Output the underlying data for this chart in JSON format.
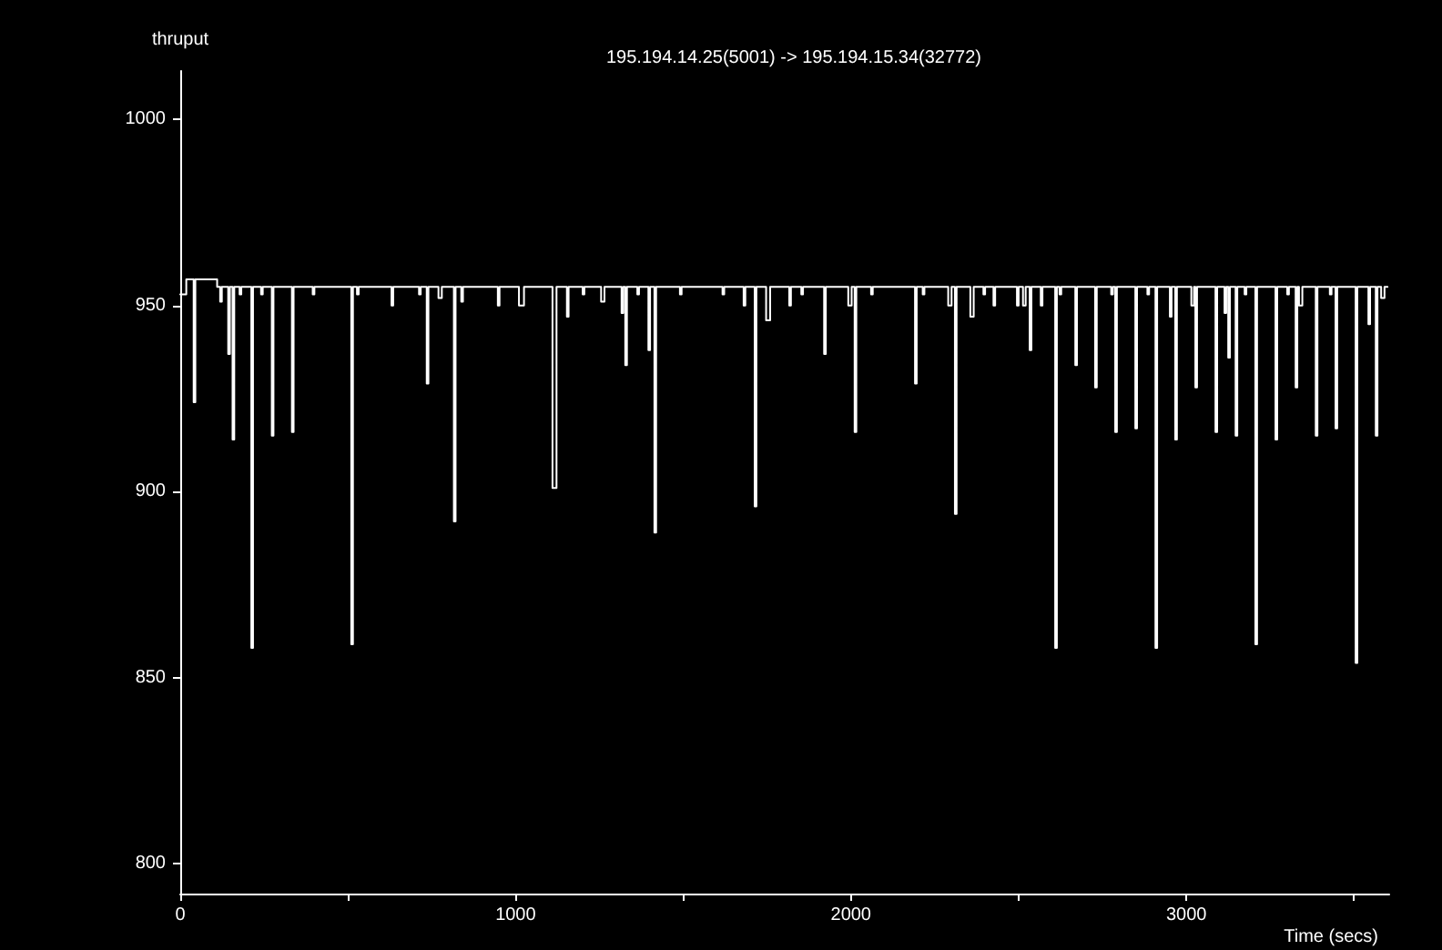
{
  "chart_data": {
    "type": "step",
    "title": "195.194.14.25(5001) -> 195.194.15.34(32772)",
    "xlabel": "Time (secs)",
    "ylabel": "thruput",
    "x": [
      0,
      18,
      40,
      45,
      110,
      119,
      124,
      143,
      148,
      156,
      161,
      177,
      182,
      212,
      217,
      241,
      246,
      273,
      278,
      333,
      338,
      395,
      400,
      510,
      515,
      527,
      532,
      630,
      635,
      712,
      717,
      735,
      740,
      770,
      780,
      816,
      821,
      838,
      843,
      947,
      952,
      1010,
      1025,
      1110,
      1122,
      1153,
      1158,
      1200,
      1205,
      1255,
      1265,
      1316,
      1321,
      1327,
      1332,
      1363,
      1368,
      1396,
      1401,
      1414,
      1419,
      1490,
      1495,
      1617,
      1622,
      1680,
      1685,
      1713,
      1718,
      1747,
      1759,
      1816,
      1821,
      1852,
      1857,
      1920,
      1925,
      1992,
      2002,
      2011,
      2016,
      2060,
      2065,
      2191,
      2196,
      2214,
      2219,
      2290,
      2300,
      2310,
      2315,
      2356,
      2366,
      2395,
      2400,
      2425,
      2430,
      2495,
      2500,
      2513,
      2521,
      2533,
      2538,
      2566,
      2571,
      2609,
      2614,
      2622,
      2627,
      2669,
      2674,
      2728,
      2733,
      2776,
      2781,
      2788,
      2793,
      2848,
      2853,
      2884,
      2889,
      2908,
      2913,
      2951,
      2956,
      2967,
      2972,
      3015,
      3023,
      3027,
      3032,
      3087,
      3092,
      3114,
      3119,
      3125,
      3130,
      3147,
      3152,
      3174,
      3179,
      3206,
      3211,
      3266,
      3271,
      3301,
      3306,
      3326,
      3331,
      3336,
      3346,
      3386,
      3391,
      3428,
      3433,
      3445,
      3450,
      3505,
      3510,
      3543,
      3548,
      3565,
      3570,
      3581,
      3591,
      3600
    ],
    "values": [
      953,
      957,
      924,
      957,
      955,
      951,
      955,
      937,
      955,
      914,
      955,
      953,
      955,
      858,
      955,
      953,
      955,
      915,
      955,
      916,
      955,
      953,
      955,
      859,
      955,
      953,
      955,
      950,
      955,
      953,
      955,
      929,
      955,
      952,
      955,
      892,
      955,
      951,
      955,
      950,
      955,
      950,
      955,
      901,
      955,
      947,
      955,
      953,
      955,
      951,
      955,
      948,
      955,
      934,
      955,
      953,
      955,
      938,
      955,
      889,
      955,
      953,
      955,
      953,
      955,
      950,
      955,
      896,
      955,
      946,
      955,
      950,
      955,
      953,
      955,
      937,
      955,
      950,
      955,
      916,
      955,
      953,
      955,
      929,
      955,
      953,
      955,
      950,
      955,
      894,
      955,
      947,
      955,
      953,
      955,
      950,
      955,
      950,
      955,
      950,
      955,
      938,
      955,
      950,
      955,
      858,
      955,
      953,
      955,
      934,
      955,
      928,
      955,
      953,
      955,
      916,
      955,
      917,
      955,
      953,
      955,
      858,
      955,
      947,
      955,
      914,
      955,
      950,
      955,
      928,
      955,
      916,
      955,
      948,
      955,
      936,
      955,
      915,
      955,
      953,
      955,
      859,
      955,
      914,
      955,
      953,
      955,
      928,
      955,
      950,
      955,
      915,
      955,
      953,
      955,
      917,
      955,
      854,
      955,
      945,
      955,
      915,
      955,
      952,
      955,
      955
    ],
    "color": "#ffffff",
    "xlim": [
      0,
      3605
    ],
    "ylim": [
      792,
      1013
    ],
    "xticks": [
      0,
      {
        "value": 500,
        "label": null
      },
      1000,
      {
        "value": 1500,
        "label": null
      },
      2000,
      {
        "value": 2500,
        "label": null
      },
      3000,
      {
        "value": 3500,
        "label": null
      }
    ],
    "yticks": [
      800,
      850,
      900,
      950,
      1000
    ],
    "marker": "none",
    "line_style": "solid"
  }
}
